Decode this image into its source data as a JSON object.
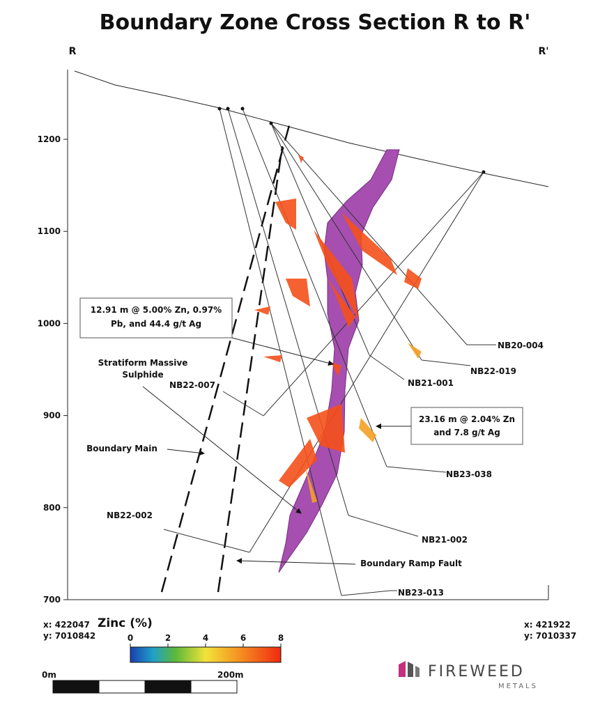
{
  "title": "Boundary Zone Cross Section R to R'",
  "section": {
    "start": "R",
    "end": "R'"
  },
  "elevation_ticks": [
    1200,
    1100,
    1000,
    900,
    800,
    700
  ],
  "callouts": [
    {
      "lines": [
        "12.91 m @ 5.00% Zn, 0.97%",
        "Pb, and 44.4 g/t Ag"
      ]
    },
    {
      "lines": [
        "23.16 m @ 2.04% Zn",
        "and 7.8 g/t Ag"
      ]
    }
  ],
  "labels": {
    "massive_sulphide": [
      "Stratiform Massive",
      "Sulphide"
    ],
    "boundary_main": "Boundary Main",
    "ramp_fault": "Boundary Ramp Fault"
  },
  "drill_holes": [
    "NB20-004",
    "NB22-019",
    "NB21-001",
    "NB23-038",
    "NB21-002",
    "NB23-013",
    "NB22-007",
    "NB22-002"
  ],
  "coordinates": {
    "start": {
      "x": "x: 422047",
      "y": "y: 7010842"
    },
    "end": {
      "x": "x: 421922",
      "y": "y: 7010337"
    }
  },
  "legend": {
    "title": "Zinc (%)",
    "ticks": [
      0,
      2,
      4,
      6,
      8
    ]
  },
  "scale_bar": {
    "start": "0m",
    "end": "200m"
  },
  "logo": {
    "name": "FIREWEED",
    "tagline": "METALS"
  }
}
